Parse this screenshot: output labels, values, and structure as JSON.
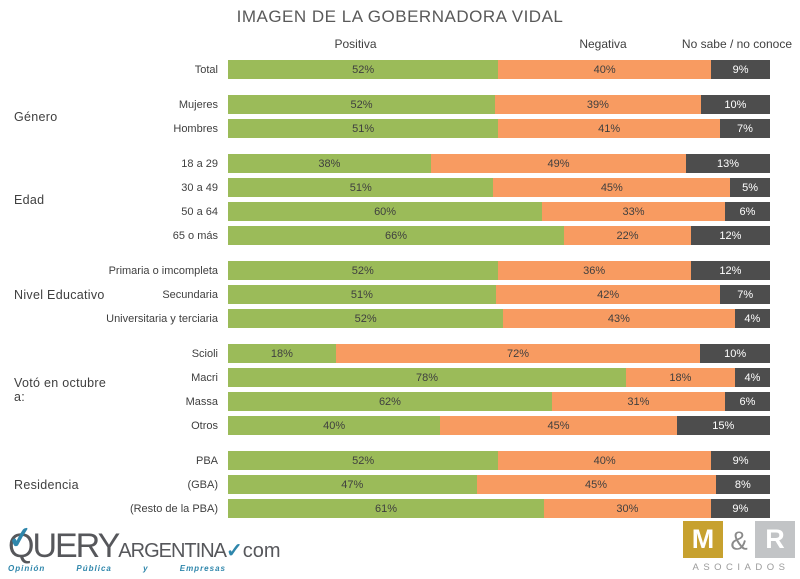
{
  "title": "IMAGEN DE LA GOBERNADORA VIDAL",
  "legend": {
    "positiva": "Positiva",
    "negativa": "Negativa",
    "no_sabe": "No sabe / no conoce"
  },
  "colors": {
    "positiva": "#9bbb59",
    "negativa": "#f89b61",
    "no_sabe": "#4d4d4d",
    "label_dark": "#3f3f3f",
    "label_light": "#ffffff"
  },
  "chart_data": {
    "type": "bar",
    "stacked": true,
    "orientation": "horizontal",
    "normalized_to_100": true,
    "series_names": [
      "Positiva",
      "Negativa",
      "No sabe / no conoce"
    ],
    "series_keys": [
      "positiva",
      "negativa",
      "no_sabe"
    ],
    "groups": [
      {
        "label": "",
        "rows": [
          {
            "label": "Total",
            "values": [
              52,
              40,
              9
            ]
          }
        ]
      },
      {
        "label": "Género",
        "rows": [
          {
            "label": "Mujeres",
            "values": [
              52,
              39,
              10
            ]
          },
          {
            "label": "Hombres",
            "values": [
              51,
              41,
              7
            ]
          }
        ]
      },
      {
        "label": "Edad",
        "rows": [
          {
            "label": "18 a 29",
            "values": [
              38,
              49,
              13
            ]
          },
          {
            "label": "30 a 49",
            "values": [
              51,
              45,
              5
            ]
          },
          {
            "label": "50 a 64",
            "values": [
              60,
              33,
              6
            ]
          },
          {
            "label": "65 o más",
            "values": [
              66,
              22,
              12
            ]
          }
        ]
      },
      {
        "label": "Nivel Educativo",
        "rows": [
          {
            "label": "Primaria o imcompleta",
            "values": [
              52,
              36,
              12
            ]
          },
          {
            "label": "Secundaria",
            "values": [
              51,
              42,
              7
            ]
          },
          {
            "label": "Universitaria y terciaria",
            "values": [
              52,
              43,
              4
            ]
          }
        ]
      },
      {
        "label": "Votó en octubre a:",
        "rows": [
          {
            "label": "Scioli",
            "values": [
              18,
              72,
              10
            ]
          },
          {
            "label": "Macri",
            "values": [
              78,
              18,
              4
            ]
          },
          {
            "label": "Massa",
            "values": [
              62,
              31,
              6
            ]
          },
          {
            "label": "Otros",
            "values": [
              40,
              45,
              15
            ]
          }
        ]
      },
      {
        "label": "Residencia",
        "rows": [
          {
            "label": "PBA",
            "values": [
              52,
              40,
              9
            ]
          },
          {
            "label": "(GBA)",
            "values": [
              47,
              45,
              8
            ]
          },
          {
            "label": "(Resto de la PBA)",
            "values": [
              61,
              30,
              9
            ]
          }
        ]
      }
    ]
  },
  "footer": {
    "query_logo": {
      "check": "✓",
      "main": "QUERY",
      "sub": "ARGENTINA",
      "check2": "✓",
      "domain": "com",
      "tagline_words": [
        "Opinión",
        "Pública",
        "y",
        "Empresas"
      ]
    },
    "mr_logo": {
      "m": "M",
      "amp": "&",
      "r": "R",
      "subtitle": "ASOCIADOS"
    }
  }
}
